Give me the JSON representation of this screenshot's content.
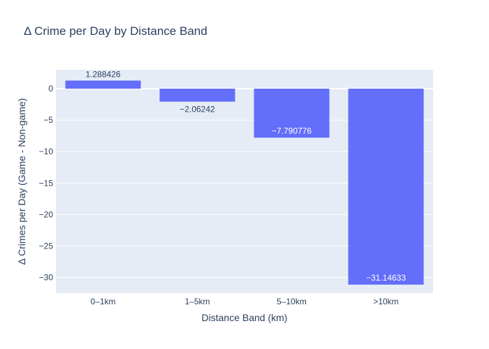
{
  "chart_data": {
    "type": "bar",
    "title": "Δ Crime per Day by Distance Band",
    "xlabel": "Distance Band (km)",
    "ylabel": "Δ Crimes per Day (Game - Non-game)",
    "categories": [
      "0–1km",
      "1–5km",
      "5–10km",
      ">10km"
    ],
    "values": [
      1.288426,
      -2.06242,
      -7.790776,
      -31.14633
    ],
    "value_labels": [
      "1.288426",
      "−2.06242",
      "−7.790776",
      "−31.14633"
    ],
    "ylim": [
      -32.5,
      3
    ],
    "yticks": [
      0,
      -5,
      -10,
      -15,
      -20,
      -25,
      -30
    ],
    "ytick_labels": [
      "0",
      "−5",
      "−10",
      "−15",
      "−20",
      "−25",
      "−30"
    ],
    "grid": true,
    "legend": "none",
    "colors": {
      "bar": "#636efa",
      "plot_bg": "#e5ecf6",
      "grid": "#ffffff",
      "text": "#2a3f5f"
    }
  }
}
